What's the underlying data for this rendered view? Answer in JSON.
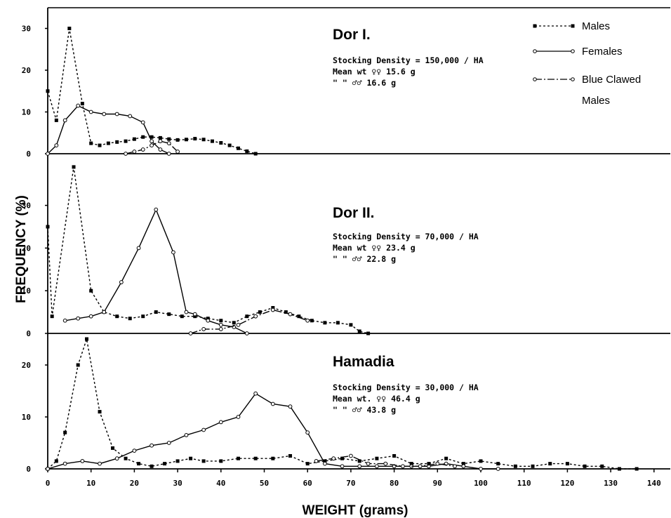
{
  "chart_data": {
    "type": "line",
    "xlabel": "WEIGHT (grams)",
    "ylabel": "FREQUENCY (%)",
    "xlim": [
      0,
      140
    ],
    "x_ticks": [
      0,
      10,
      20,
      30,
      40,
      50,
      60,
      70,
      80,
      90,
      100,
      110,
      120,
      130,
      140
    ],
    "x_tick_labels": [
      "0",
      "10",
      "20",
      "30",
      "40",
      "50",
      "60",
      "70",
      "80",
      "90",
      "100",
      "110",
      "120",
      "130",
      "140"
    ],
    "legend": {
      "placement": "top-right",
      "entries": [
        {
          "name": "Males",
          "style": "dashed",
          "marker": "filled"
        },
        {
          "name": "Females",
          "style": "solid",
          "marker": "open"
        },
        {
          "name": "Blue Clawed",
          "name2": "Males",
          "style": "dashdot",
          "marker": "open"
        }
      ]
    },
    "panels": [
      {
        "title": "Dor I.",
        "info": [
          "Stocking Density = 150,000 / HA",
          "Mean wt ♀♀ 15.6 g",
          "\" \" ♂♂ 16.6 g"
        ],
        "ylim": [
          0,
          33
        ],
        "y_ticks": [
          0,
          10,
          20,
          30
        ],
        "y_tick_labels": [
          "0",
          "10",
          "20",
          "30"
        ],
        "series": [
          {
            "name": "Males",
            "points": [
              [
                0,
                15
              ],
              [
                2,
                8
              ],
              [
                5,
                30
              ],
              [
                8,
                12
              ],
              [
                10,
                2.5
              ],
              [
                12,
                2
              ],
              [
                14,
                2.5
              ],
              [
                16,
                2.8
              ],
              [
                18,
                3
              ],
              [
                20,
                3.5
              ],
              [
                22,
                4
              ],
              [
                24,
                4
              ],
              [
                26,
                3.8
              ],
              [
                28,
                3.5
              ],
              [
                30,
                3.3
              ],
              [
                32,
                3.4
              ],
              [
                34,
                3.6
              ],
              [
                36,
                3.4
              ],
              [
                38,
                3
              ],
              [
                40,
                2.6
              ],
              [
                42,
                2
              ],
              [
                44,
                1.3
              ],
              [
                46,
                0.6
              ],
              [
                48,
                0
              ]
            ]
          },
          {
            "name": "Females",
            "points": [
              [
                0,
                0
              ],
              [
                2,
                2
              ],
              [
                4,
                8
              ],
              [
                7,
                11.5
              ],
              [
                10,
                10
              ],
              [
                13,
                9.5
              ],
              [
                16,
                9.5
              ],
              [
                19,
                9
              ],
              [
                22,
                7.5
              ],
              [
                24,
                3
              ],
              [
                26,
                1
              ],
              [
                28,
                0
              ]
            ]
          },
          {
            "name": "Blue Clawed Males",
            "points": [
              [
                18,
                0
              ],
              [
                20,
                0.5
              ],
              [
                22,
                1
              ],
              [
                24,
                2
              ],
              [
                26,
                3
              ],
              [
                28,
                2.5
              ],
              [
                30,
                0.5
              ]
            ]
          }
        ]
      },
      {
        "title": "Dor II.",
        "info": [
          "Stocking Density = 70,000 / HA",
          "Mean wt ♀♀ 23.4 g",
          "\" \" ♂♂ 22.8 g"
        ],
        "ylim": [
          0,
          40
        ],
        "y_ticks": [
          0,
          10,
          20,
          30
        ],
        "y_tick_labels": [
          "0",
          "10",
          "20",
          "30"
        ],
        "series": [
          {
            "name": "Males",
            "points": [
              [
                0,
                25
              ],
              [
                1,
                4
              ],
              [
                6,
                39
              ],
              [
                10,
                10
              ],
              [
                13,
                5
              ],
              [
                16,
                4
              ],
              [
                19,
                3.5
              ],
              [
                22,
                4
              ],
              [
                25,
                5
              ],
              [
                28,
                4.5
              ],
              [
                31,
                4
              ],
              [
                34,
                4
              ],
              [
                37,
                3.5
              ],
              [
                40,
                3
              ],
              [
                43,
                2.5
              ],
              [
                46,
                4
              ],
              [
                49,
                5
              ],
              [
                52,
                6
              ],
              [
                55,
                5
              ],
              [
                58,
                4
              ],
              [
                61,
                3
              ],
              [
                64,
                2.5
              ],
              [
                67,
                2.5
              ],
              [
                70,
                2
              ],
              [
                72,
                0.5
              ],
              [
                74,
                0
              ]
            ]
          },
          {
            "name": "Females",
            "points": [
              [
                4,
                3
              ],
              [
                7,
                3.5
              ],
              [
                10,
                4
              ],
              [
                13,
                5
              ],
              [
                17,
                12
              ],
              [
                21,
                20
              ],
              [
                25,
                29
              ],
              [
                29,
                19
              ],
              [
                32,
                5
              ],
              [
                34,
                4.5
              ],
              [
                37,
                3
              ],
              [
                40,
                2
              ],
              [
                43,
                1.5
              ],
              [
                46,
                0
              ]
            ]
          },
          {
            "name": "Blue Clawed Males",
            "points": [
              [
                33,
                0
              ],
              [
                36,
                1
              ],
              [
                40,
                1
              ],
              [
                44,
                2
              ],
              [
                48,
                4
              ],
              [
                52,
                5.5
              ],
              [
                56,
                4.5
              ],
              [
                60,
                3
              ]
            ]
          }
        ]
      },
      {
        "title": "Hamadia",
        "info": [
          "Stocking Density = 30,000 / HA",
          "Mean wt. ♀♀ 46.4 g",
          "\" \" ♂♂ 43.8 g"
        ],
        "ylim": [
          0,
          27
        ],
        "y_ticks": [
          0,
          10,
          20
        ],
        "y_tick_labels": [
          "0",
          "10",
          "20"
        ],
        "series": [
          {
            "name": "Males",
            "points": [
              [
                0,
                0
              ],
              [
                2,
                1.5
              ],
              [
                4,
                7
              ],
              [
                7,
                20
              ],
              [
                9,
                25
              ],
              [
                12,
                11
              ],
              [
                15,
                4
              ],
              [
                18,
                2
              ],
              [
                21,
                1
              ],
              [
                24,
                0.5
              ],
              [
                27,
                1
              ],
              [
                30,
                1.5
              ],
              [
                33,
                2
              ],
              [
                36,
                1.5
              ],
              [
                40,
                1.5
              ],
              [
                44,
                2
              ],
              [
                48,
                2
              ],
              [
                52,
                2
              ],
              [
                56,
                2.5
              ],
              [
                60,
                1
              ],
              [
                64,
                1.5
              ],
              [
                68,
                2
              ],
              [
                72,
                1.5
              ],
              [
                76,
                2
              ],
              [
                80,
                2.5
              ],
              [
                84,
                1
              ],
              [
                88,
                1
              ],
              [
                92,
                2
              ],
              [
                96,
                1
              ],
              [
                100,
                1.5
              ],
              [
                104,
                1
              ],
              [
                108,
                0.5
              ],
              [
                112,
                0.5
              ],
              [
                116,
                1
              ],
              [
                120,
                1
              ],
              [
                124,
                0.5
              ],
              [
                128,
                0.5
              ],
              [
                132,
                0
              ],
              [
                136,
                0
              ]
            ]
          },
          {
            "name": "Females",
            "points": [
              [
                0,
                0
              ],
              [
                4,
                1
              ],
              [
                8,
                1.5
              ],
              [
                12,
                1
              ],
              [
                16,
                2
              ],
              [
                20,
                3.5
              ],
              [
                24,
                4.5
              ],
              [
                28,
                5
              ],
              [
                32,
                6.5
              ],
              [
                36,
                7.5
              ],
              [
                40,
                9
              ],
              [
                44,
                10
              ],
              [
                48,
                14.5
              ],
              [
                52,
                12.5
              ],
              [
                56,
                12
              ],
              [
                60,
                7
              ],
              [
                64,
                1
              ],
              [
                68,
                0.5
              ],
              [
                72,
                0.5
              ],
              [
                76,
                0.5
              ],
              [
                80,
                0.5
              ],
              [
                84,
                0.5
              ],
              [
                88,
                0.5
              ],
              [
                92,
                1
              ],
              [
                96,
                0.5
              ],
              [
                100,
                0
              ],
              [
                104,
                0
              ]
            ]
          },
          {
            "name": "Blue Clawed Males",
            "points": [
              [
                62,
                1.5
              ],
              [
                66,
                2
              ],
              [
                70,
                2.5
              ],
              [
                74,
                1
              ],
              [
                78,
                1
              ],
              [
                82,
                0.5
              ],
              [
                86,
                0.5
              ],
              [
                90,
                1
              ],
              [
                94,
                0.5
              ]
            ]
          }
        ]
      }
    ]
  }
}
